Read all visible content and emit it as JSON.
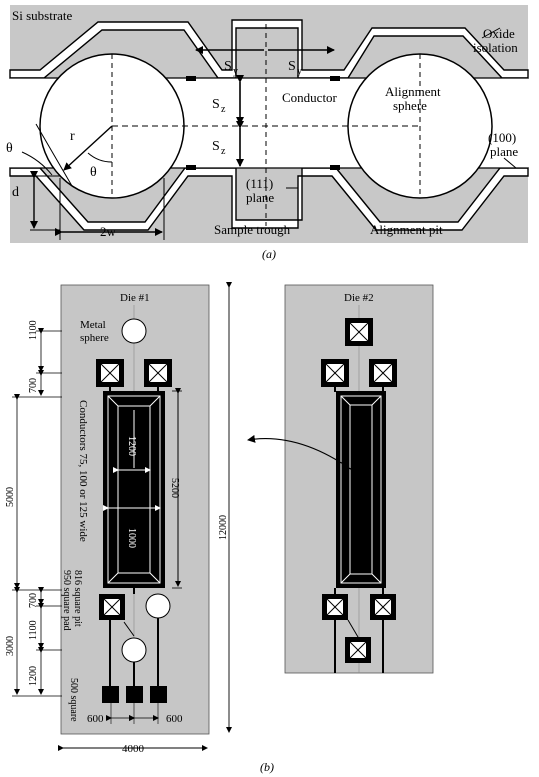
{
  "panel_a": {
    "labels": {
      "si_substrate": "Si substrate",
      "oxide_line1": "Oxide",
      "oxide_line2": "isolation",
      "sy_left": "S",
      "sy_right": "S",
      "sub_y": "y",
      "sz_top": "S",
      "sz_bottom": "S",
      "sub_z": "z",
      "conductor": "Conductor",
      "align_sphere_line1": "Alignment",
      "align_sphere_line2": "sphere",
      "plane100_line1": "(100)",
      "plane100_line2": "plane",
      "theta_outer": "θ",
      "theta_inner": "θ",
      "r": "r",
      "d": "d",
      "two_w": "2w",
      "plane111_line1": "(111)",
      "plane111_line2": "plane",
      "sample_trough": "Sample trough",
      "alignment_pit": "Alignment pit"
    },
    "caption": "(a)"
  },
  "panel_b": {
    "die1_title": "Die #1",
    "die2_title": "Die #2",
    "metal_sphere_line1": "Metal",
    "metal_sphere_line2": "sphere",
    "conductors_label": "Conductors 75, 100 or 125 wide",
    "pad_label_line1": "950 square pad",
    "pad_label_line2": "816 square pit",
    "square_500": "500 square",
    "dims": {
      "d1100_top": "1100",
      "d700_top": "700",
      "d5000": "5000",
      "d700_mid": "700",
      "d1100_mid": "1100",
      "d3000": "3000",
      "d1200_bottom": "1200",
      "d1200_inner": "1200",
      "d1000_inner": "1000",
      "d5200": "5200",
      "d12000": "12000",
      "d600_left": "600",
      "d600_right": "600",
      "d4000": "4000"
    },
    "caption": "(b)"
  },
  "colors": {
    "substrate": "#c8c8c8",
    "oxide": "#ffffff",
    "die": "#c6c6c6",
    "dark": "#000000"
  }
}
